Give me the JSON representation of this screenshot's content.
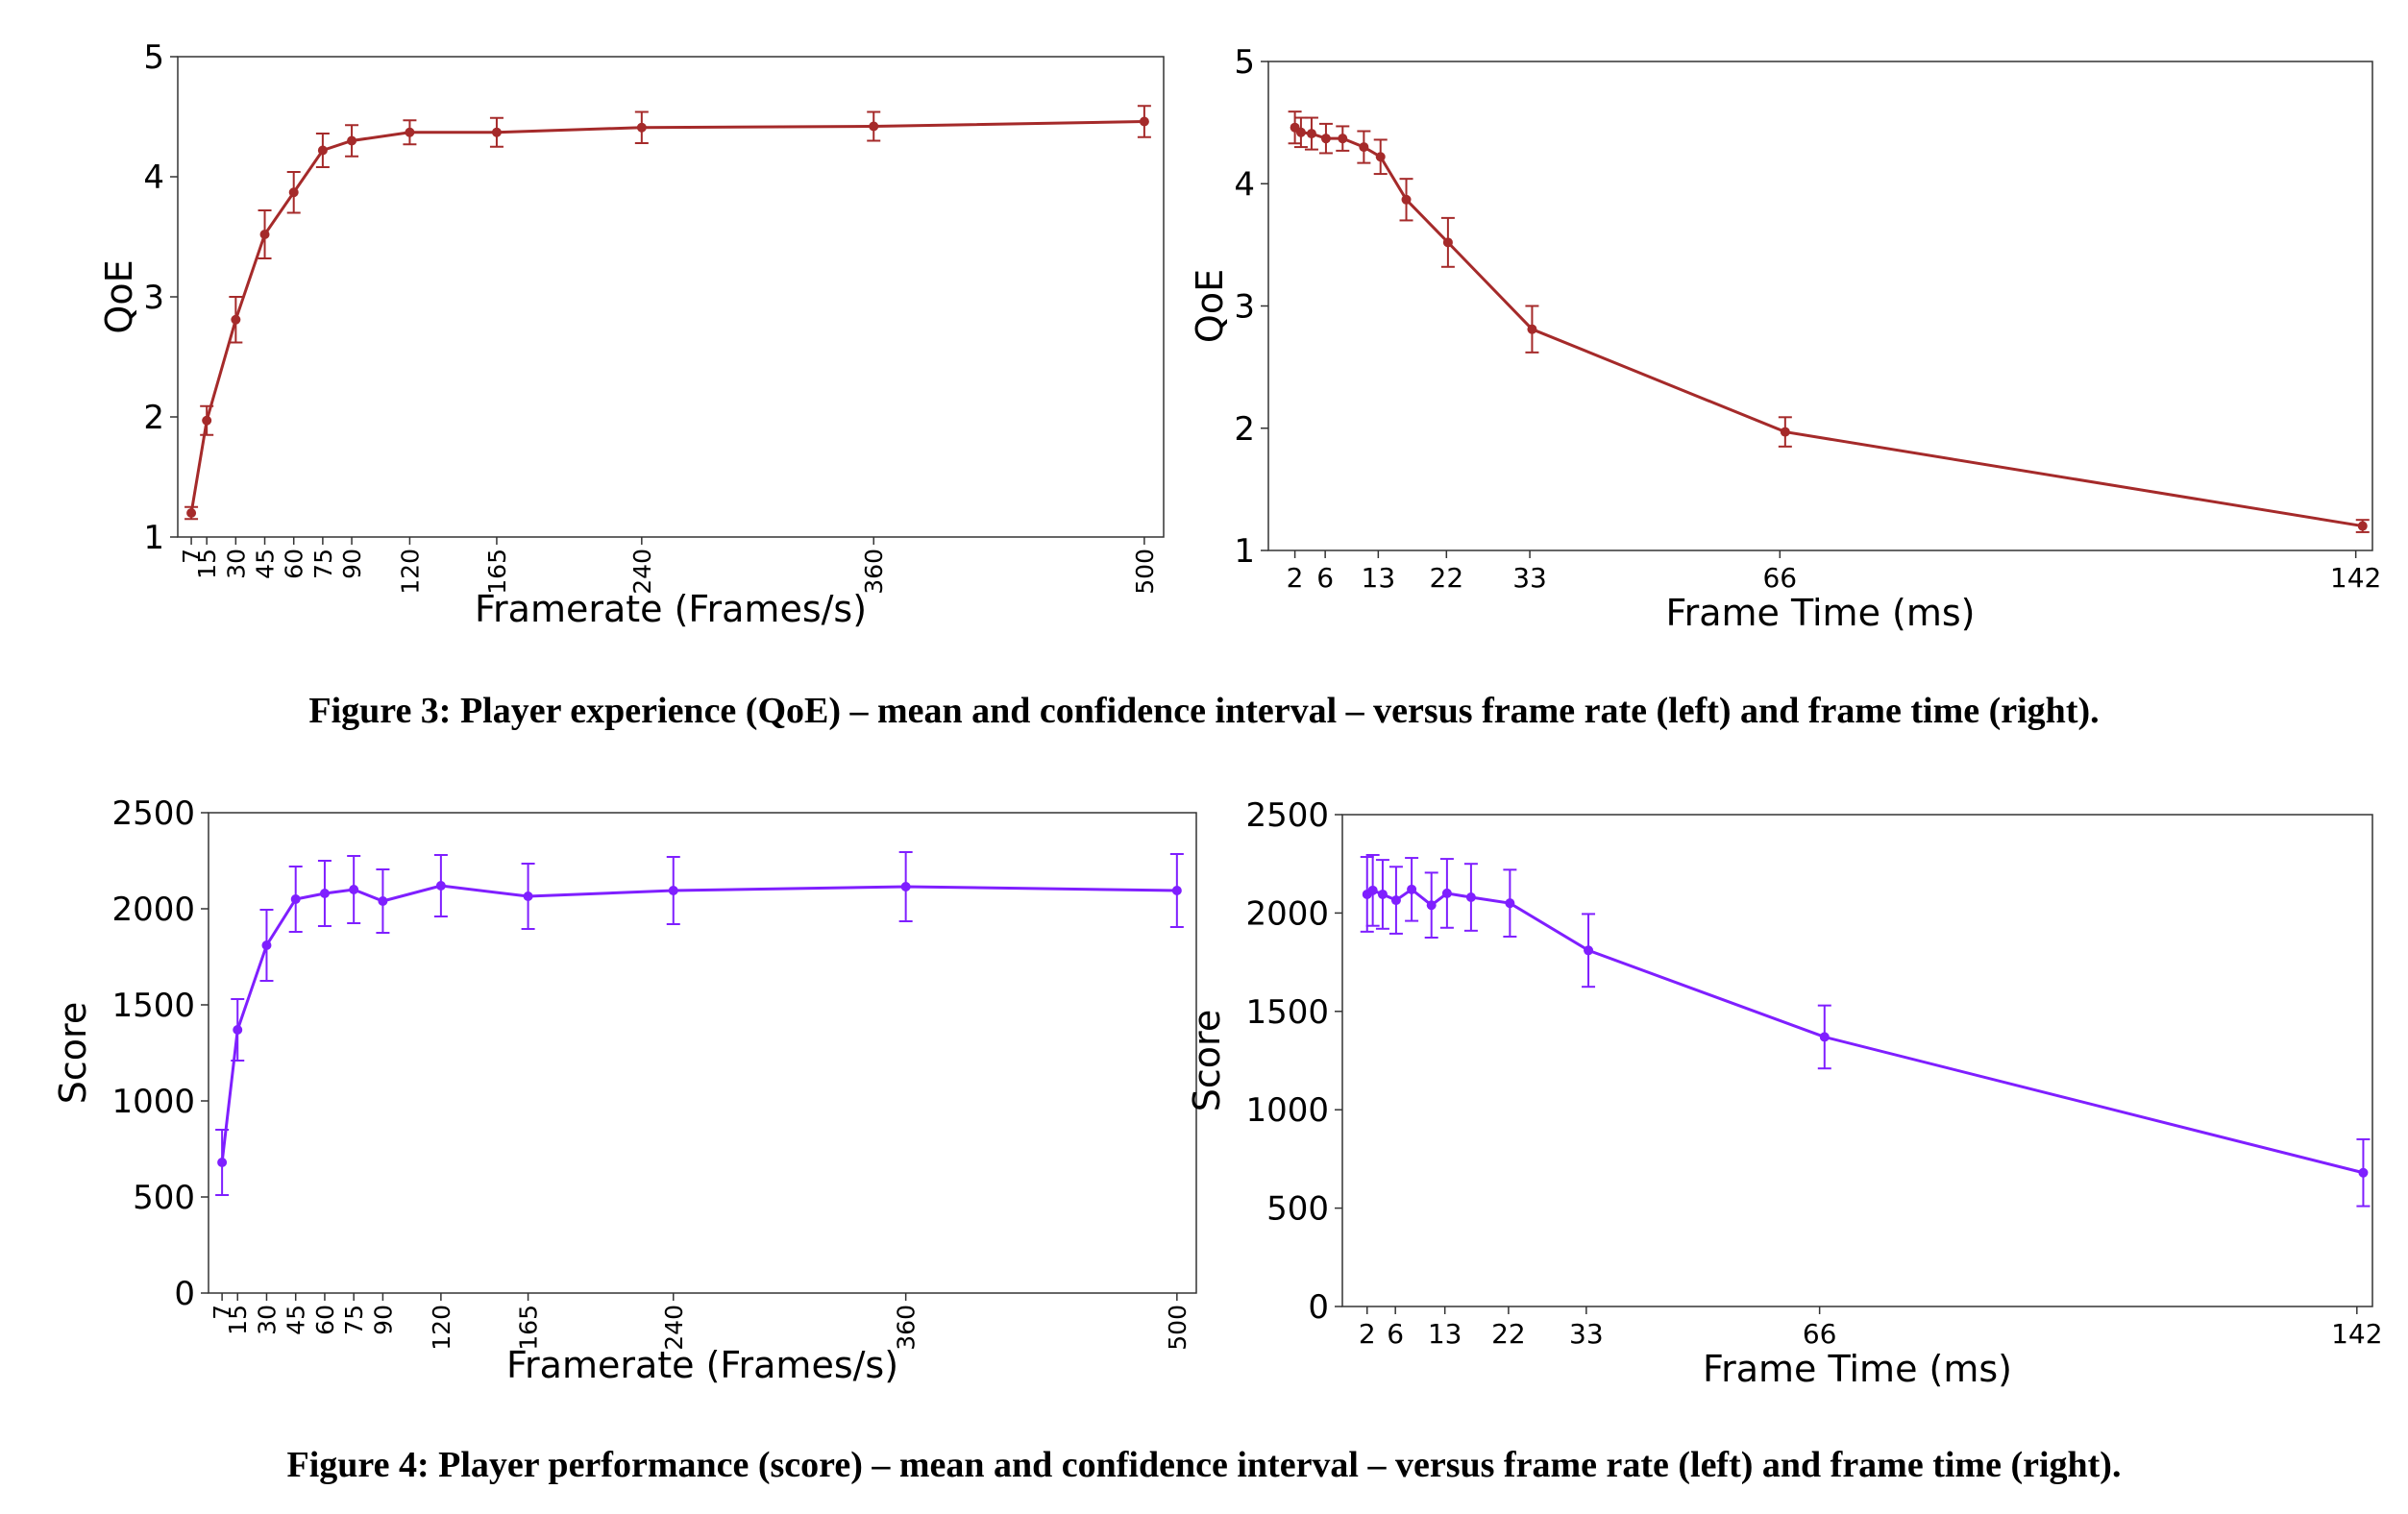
{
  "chart_data": [
    {
      "type": "line",
      "xlabel": "Framerate (Frames/s)",
      "ylabel": "QoE",
      "color": "#a52a2a",
      "x": [
        7,
        15,
        30,
        45,
        60,
        75,
        90,
        120,
        165,
        240,
        360,
        500
      ],
      "values": [
        1.2,
        1.97,
        2.81,
        3.52,
        3.87,
        4.22,
        4.3,
        4.37,
        4.37,
        4.41,
        4.42,
        4.46
      ],
      "errors": [
        0.05,
        0.12,
        0.19,
        0.2,
        0.17,
        0.14,
        0.13,
        0.1,
        0.12,
        0.13,
        0.12,
        0.13
      ],
      "xlim": [
        0,
        510
      ],
      "ylim": [
        1,
        5
      ],
      "xticks": [
        7,
        15,
        30,
        45,
        60,
        75,
        90,
        120,
        165,
        240,
        360,
        500
      ],
      "yticks": [
        1,
        2,
        3,
        4,
        5
      ],
      "xtick_rotation": 90
    },
    {
      "type": "line",
      "xlabel": "Frame Time (ms)",
      "ylabel": "QoE",
      "color": "#a52a2a",
      "x": [
        2,
        2.8,
        4.2,
        6.1,
        8.3,
        11.1,
        13.3,
        16.7,
        22.2,
        33.3,
        66.7,
        142.9
      ],
      "values": [
        4.46,
        4.42,
        4.41,
        4.37,
        4.37,
        4.3,
        4.22,
        3.87,
        3.52,
        2.81,
        1.97,
        1.2
      ],
      "errors": [
        0.13,
        0.12,
        0.13,
        0.12,
        0.1,
        0.13,
        0.14,
        0.17,
        0.2,
        0.19,
        0.12,
        0.05
      ],
      "xlim": [
        -1.5,
        144.2
      ],
      "ylim": [
        1,
        5
      ],
      "xticks": [
        2,
        6,
        13,
        22,
        33,
        66,
        142
      ],
      "yticks": [
        1,
        2,
        3,
        4,
        5
      ],
      "xtick_rotation": 0
    },
    {
      "type": "line",
      "xlabel": "Framerate (Frames/s)",
      "ylabel": "Score",
      "color": "#7f1fff",
      "x": [
        7,
        15,
        30,
        45,
        60,
        75,
        90,
        120,
        165,
        240,
        360,
        500
      ],
      "values": [
        680,
        1370,
        1810,
        2050,
        2080,
        2100,
        2040,
        2120,
        2065,
        2095,
        2115,
        2095
      ],
      "errors": [
        170,
        160,
        185,
        170,
        170,
        175,
        165,
        160,
        170,
        175,
        180,
        190
      ],
      "xlim": [
        0,
        510
      ],
      "ylim": [
        0,
        2500
      ],
      "xticks": [
        7,
        15,
        30,
        45,
        60,
        75,
        90,
        120,
        165,
        240,
        360,
        500
      ],
      "yticks": [
        0,
        500,
        1000,
        1500,
        2000,
        2500
      ],
      "xtick_rotation": 90
    },
    {
      "type": "line",
      "xlabel": "Frame Time (ms)",
      "ylabel": "Score",
      "color": "#7f1fff",
      "x": [
        2,
        2.8,
        4.2,
        6.1,
        8.3,
        11.1,
        13.3,
        16.7,
        22.2,
        33.3,
        66.7,
        142.9
      ],
      "values": [
        2095,
        2115,
        2095,
        2065,
        2120,
        2040,
        2100,
        2080,
        2050,
        1810,
        1370,
        680
      ],
      "errors": [
        190,
        180,
        175,
        170,
        160,
        165,
        175,
        170,
        170,
        185,
        160,
        170
      ],
      "xlim": [
        -1.5,
        144.2
      ],
      "ylim": [
        0,
        2500
      ],
      "xticks": [
        2,
        6,
        13,
        22,
        33,
        66,
        142
      ],
      "yticks": [
        0,
        500,
        1000,
        1500,
        2000,
        2500
      ],
      "xtick_rotation": 0
    }
  ],
  "figure_captions": [
    "Figure 3: Player experience (QoE) – mean and confidence interval – versus frame rate (left) and frame time (right).",
    "Figure 4: Player performance (score) – mean and confidence interval – versus frame rate (left) and frame time (right)."
  ]
}
